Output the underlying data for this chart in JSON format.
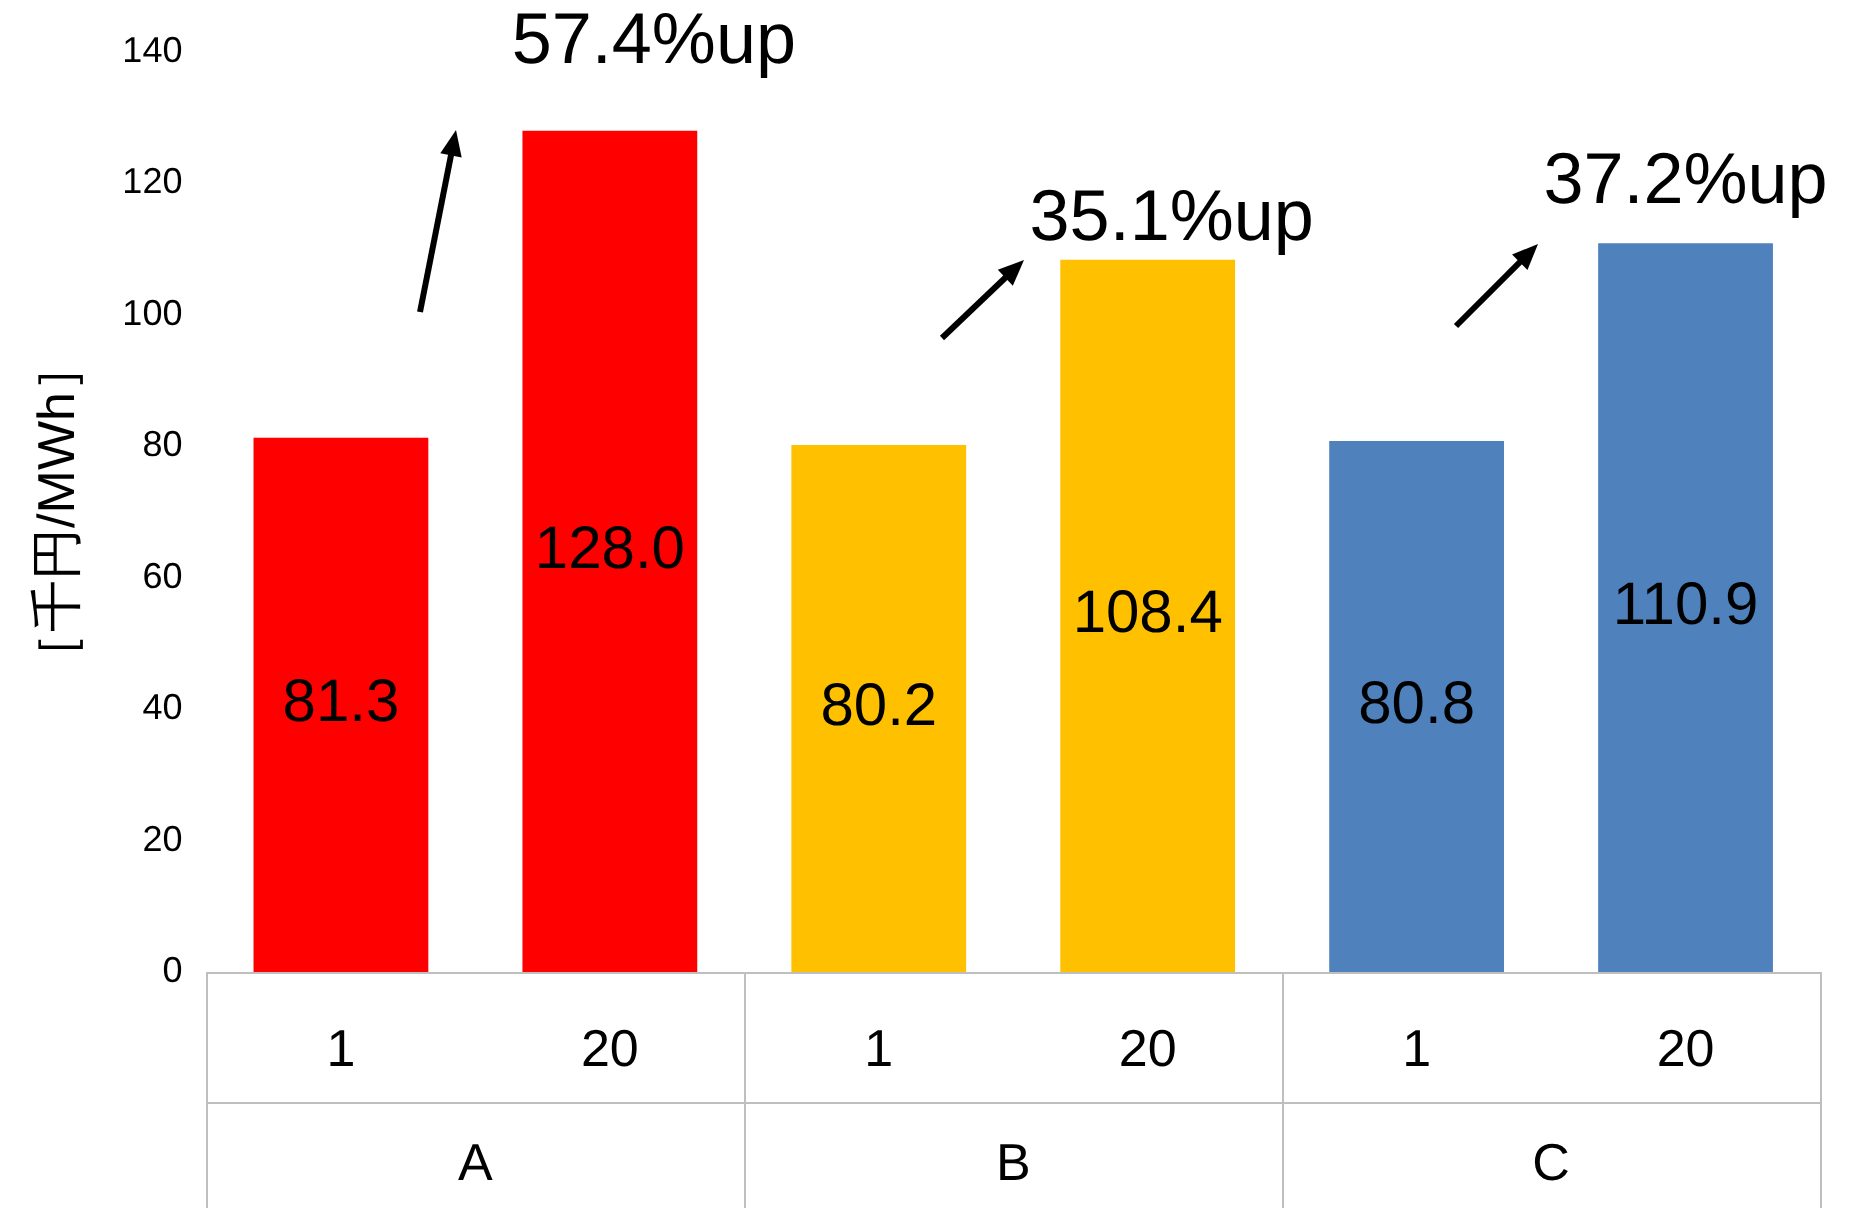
{
  "chart_data": {
    "type": "bar",
    "ylabel": "［千円/MWh］",
    "categories": [
      "1",
      "20",
      "1",
      "20",
      "1",
      "20"
    ],
    "series": [
      {
        "color": "#ff0000",
        "values": [
          81.3,
          128.0,
          null,
          null,
          null,
          null
        ],
        "value_labels": [
          "81.3",
          "128.0",
          null,
          null,
          null,
          null
        ]
      },
      {
        "color": "#ffc000",
        "values": [
          null,
          null,
          80.2,
          108.4,
          null,
          null
        ],
        "value_labels": [
          null,
          null,
          "80.2",
          "108.4",
          null,
          null
        ]
      },
      {
        "color": "#4f81bd",
        "values": [
          null,
          null,
          null,
          null,
          80.8,
          110.9
        ],
        "value_labels": [
          null,
          null,
          null,
          null,
          "80.8",
          "110.9"
        ]
      }
    ],
    "ylim": [
      0,
      140
    ],
    "yticks": [
      0,
      20,
      40,
      60,
      80,
      100,
      120,
      140
    ],
    "grid": false,
    "legend": false,
    "annotations": [
      "57.4%up",
      "35.1%up",
      "37.2%up",
      "A",
      "B",
      "C"
    ]
  }
}
